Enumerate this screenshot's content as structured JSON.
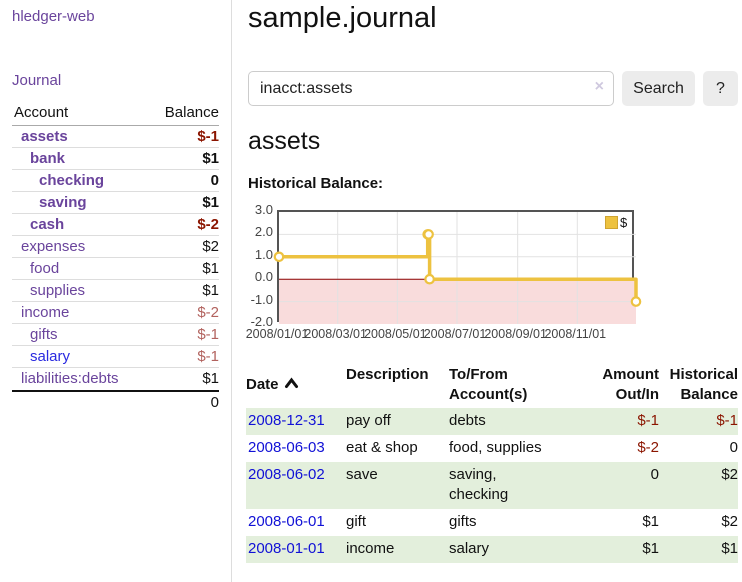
{
  "app": {
    "brand": "hledger-web",
    "nav_journal": "Journal"
  },
  "sidebar": {
    "header": {
      "account": "Account",
      "balance": "Balance"
    },
    "accounts": [
      {
        "name": "assets",
        "indent": 0,
        "bold": true,
        "name_color": "purple",
        "balance": "$-1",
        "balance_style": "neg-bold"
      },
      {
        "name": "bank",
        "indent": 1,
        "bold": true,
        "name_color": "purple",
        "balance": "$1",
        "balance_style": "bold"
      },
      {
        "name": "checking",
        "indent": 2,
        "bold": true,
        "name_color": "purple",
        "balance": "0",
        "balance_style": "bold"
      },
      {
        "name": "saving",
        "indent": 2,
        "bold": true,
        "name_color": "purple",
        "balance": "$1",
        "balance_style": "bold"
      },
      {
        "name": "cash",
        "indent": 1,
        "bold": true,
        "name_color": "purple",
        "balance": "$-2",
        "balance_style": "neg-bold"
      },
      {
        "name": "expenses",
        "indent": 0,
        "bold": false,
        "name_color": "purple",
        "balance": "$2",
        "balance_style": "plain"
      },
      {
        "name": "food",
        "indent": 1,
        "bold": false,
        "name_color": "purple",
        "balance": "$1",
        "balance_style": "plain"
      },
      {
        "name": "supplies",
        "indent": 1,
        "bold": false,
        "name_color": "purple",
        "balance": "$1",
        "balance_style": "plain"
      },
      {
        "name": "income",
        "indent": 0,
        "bold": false,
        "name_color": "purple",
        "balance": "$-2",
        "balance_style": "neg-light"
      },
      {
        "name": "gifts",
        "indent": 1,
        "bold": false,
        "name_color": "purple",
        "balance": "$-1",
        "balance_style": "neg-light"
      },
      {
        "name": "salary",
        "indent": 1,
        "bold": false,
        "name_color": "blue",
        "balance": "$-1",
        "balance_style": "neg-light"
      },
      {
        "name": "liabilities:debts",
        "indent": 0,
        "bold": false,
        "name_color": "purple",
        "balance": "$1",
        "balance_style": "plain"
      }
    ],
    "total": "0"
  },
  "header": {
    "title": "sample.journal"
  },
  "search": {
    "value": "inacct:assets",
    "clear_icon": "×",
    "search_label": "Search",
    "help_label": "?"
  },
  "account_page": {
    "title": "assets",
    "chart_label": "Historical Balance:"
  },
  "chart_data": {
    "type": "line",
    "title": "Historical Balance",
    "legend": {
      "label": "$",
      "position": "top-right"
    },
    "x_range": [
      "2008-01-01",
      "2008-12-31"
    ],
    "ylim": [
      -2,
      3
    ],
    "grid": true,
    "negative_region": true,
    "y_ticks": [
      {
        "v": 3,
        "label": "3.0"
      },
      {
        "v": 2,
        "label": "2.0"
      },
      {
        "v": 1,
        "label": "1.0"
      },
      {
        "v": 0,
        "label": "0.0"
      },
      {
        "v": -1,
        "label": "-1.0"
      },
      {
        "v": -2,
        "label": "-2.0"
      }
    ],
    "x_ticks": [
      {
        "date": "2008-01-01",
        "label": "2008/01/01"
      },
      {
        "date": "2008-03-01",
        "label": "2008/03/01"
      },
      {
        "date": "2008-05-01",
        "label": "2008/05/01"
      },
      {
        "date": "2008-07-01",
        "label": "2008/07/01"
      },
      {
        "date": "2008-09-01",
        "label": "2008/09/01"
      },
      {
        "date": "2008-11-01",
        "label": "2008/11/01"
      }
    ],
    "series": [
      {
        "name": "$",
        "color": "#edc240",
        "step": true,
        "marker": "circle",
        "points": [
          {
            "date": "2008-01-01",
            "value": 1
          },
          {
            "date": "2008-06-01",
            "value": 2
          },
          {
            "date": "2008-06-02",
            "value": 2
          },
          {
            "date": "2008-06-03",
            "value": 0
          },
          {
            "date": "2008-12-31",
            "value": -1
          }
        ]
      }
    ],
    "colors": {
      "zero_line": "#8b0000",
      "negative_region": "#f9dcdc",
      "gridline": "#e2e2e2",
      "plot_border": "#545454"
    }
  },
  "register": {
    "columns": [
      {
        "line1": "Date",
        "line2": ""
      },
      {
        "line1": "Description",
        "line2": ""
      },
      {
        "line1": "To/From",
        "line2": "Account(s)"
      },
      {
        "line1": "Amount",
        "line2": "Out/In"
      },
      {
        "line1": "Historical",
        "line2": "Balance"
      }
    ],
    "sort": {
      "column": "Date",
      "direction": "asc"
    },
    "rows": [
      {
        "date": "2008-12-31",
        "description": "pay off",
        "accounts": [
          "debts"
        ],
        "amount": "$-1",
        "amount_neg": true,
        "balance": "$-1",
        "balance_neg": true
      },
      {
        "date": "2008-06-03",
        "description": "eat & shop",
        "accounts": [
          "food, supplies"
        ],
        "amount": "$-2",
        "amount_neg": true,
        "balance": "0",
        "balance_neg": false
      },
      {
        "date": "2008-06-02",
        "description": "save",
        "accounts": [
          "saving,",
          "checking"
        ],
        "amount": "0",
        "amount_neg": false,
        "balance": "$2",
        "balance_neg": false
      },
      {
        "date": "2008-06-01",
        "description": "gift",
        "accounts": [
          "gifts"
        ],
        "amount": "$1",
        "amount_neg": false,
        "balance": "$2",
        "balance_neg": false
      },
      {
        "date": "2008-01-01",
        "description": "income",
        "accounts": [
          "salary"
        ],
        "amount": "$1",
        "amount_neg": false,
        "balance": "$1",
        "balance_neg": false
      }
    ]
  },
  "colors": {
    "link_purple": "#6a449c",
    "link_blue": "#1111d6",
    "negative_strong": "#8b1500",
    "negative_light": "#b2625e",
    "row_stripe_green": "#e3efdc",
    "series_gold": "#edc240"
  }
}
